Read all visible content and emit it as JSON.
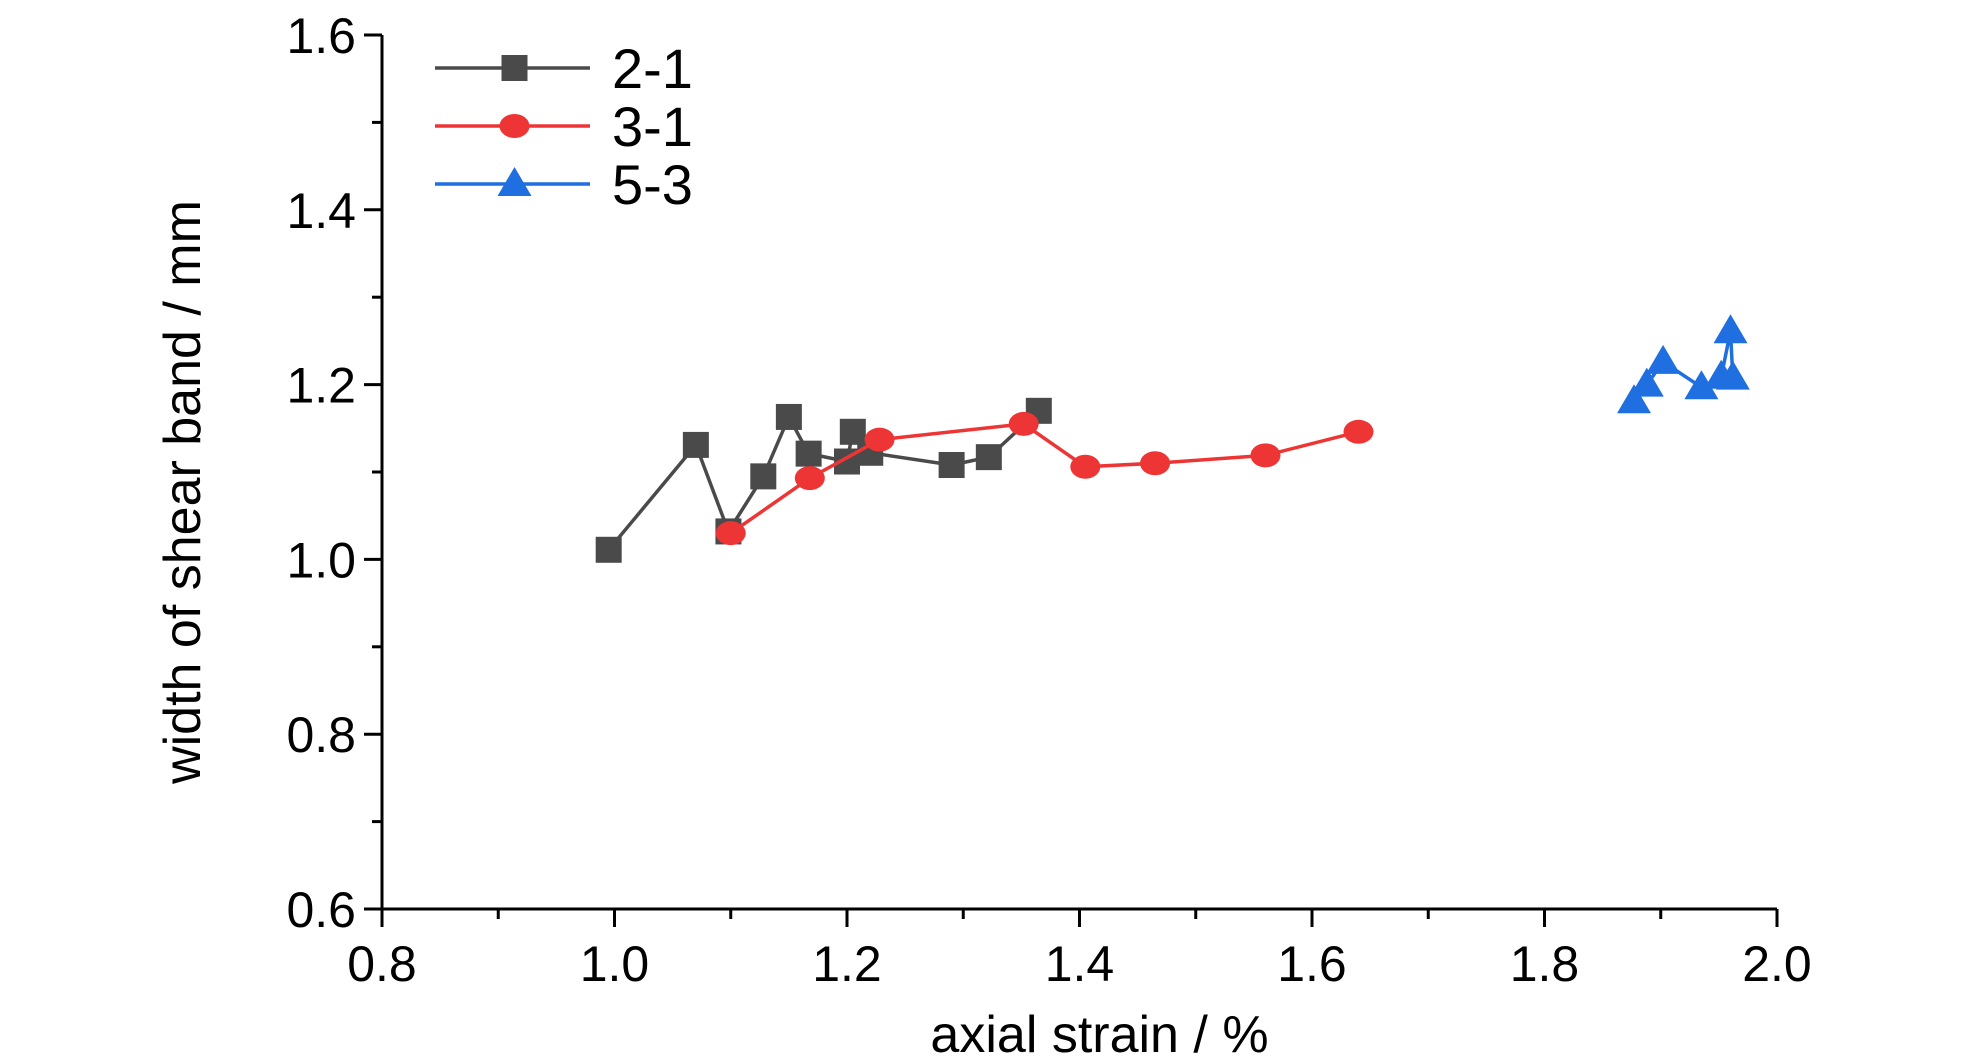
{
  "chart_data": {
    "type": "line",
    "xlabel": "axial strain / %",
    "ylabel": "width of shear band / mm",
    "xlim": [
      0.8,
      2.0
    ],
    "ylim": [
      0.6,
      1.6
    ],
    "xticks": [
      "0.8",
      "1.0",
      "1.2",
      "1.4",
      "1.6",
      "1.8",
      "2.0"
    ],
    "yticks": [
      "0.6",
      "0.8",
      "1.0",
      "1.2",
      "1.4",
      "1.6"
    ],
    "grid": false,
    "legend_position": "top-left",
    "series": [
      {
        "name": "2-1",
        "color": "#4a4a4a",
        "marker": "square",
        "points": [
          [
            0.995,
            1.011
          ],
          [
            1.07,
            1.131
          ],
          [
            1.098,
            1.032
          ],
          [
            1.128,
            1.095
          ],
          [
            1.15,
            1.163
          ],
          [
            1.167,
            1.121
          ],
          [
            1.2,
            1.112
          ],
          [
            1.205,
            1.146
          ],
          [
            1.22,
            1.122
          ],
          [
            1.29,
            1.108
          ],
          [
            1.322,
            1.117
          ],
          [
            1.365,
            1.17
          ]
        ]
      },
      {
        "name": "3-1",
        "color": "#ee3535",
        "marker": "circle",
        "points": [
          [
            1.1,
            1.03
          ],
          [
            1.168,
            1.093
          ],
          [
            1.228,
            1.137
          ],
          [
            1.352,
            1.155
          ],
          [
            1.405,
            1.106
          ],
          [
            1.465,
            1.11
          ],
          [
            1.56,
            1.119
          ],
          [
            1.64,
            1.146
          ]
        ]
      },
      {
        "name": "5-3",
        "color": "#1f6fe0",
        "marker": "triangle",
        "points": [
          [
            1.877,
            1.181
          ],
          [
            1.888,
            1.2
          ],
          [
            1.902,
            1.226
          ],
          [
            1.935,
            1.197
          ],
          [
            1.952,
            1.209
          ],
          [
            1.96,
            1.261
          ],
          [
            1.962,
            1.208
          ]
        ]
      }
    ]
  }
}
